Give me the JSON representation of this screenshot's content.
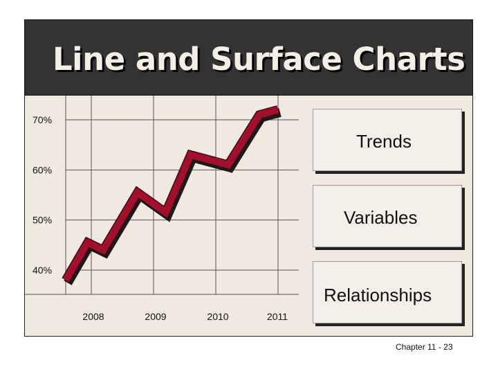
{
  "slide": {
    "title": "Line and Surface Charts",
    "footer": "Chapter 11 - 23"
  },
  "callouts": [
    "Trends",
    "Variables",
    "Relationships"
  ],
  "colors": {
    "line": "#a0102a",
    "line_shadow": "#1a1a1a",
    "background": "#efe9df",
    "title_bar": "#333333"
  },
  "chart_data": {
    "type": "line",
    "title": "",
    "xlabel": "",
    "ylabel": "",
    "y_ticks": [
      "40%",
      "50%",
      "60%",
      "70%"
    ],
    "x_ticks": [
      "2008",
      "2009",
      "2010",
      "2011"
    ],
    "ylim": [
      40,
      70
    ],
    "xlim": [
      2007.6,
      2011.1
    ],
    "grid": true,
    "series": [
      {
        "x": [
          2007.6,
          2007.95,
          2008.2,
          2008.75,
          2009.2,
          2009.6,
          2010.2,
          2010.7,
          2011.0
        ],
        "y": [
          38.0,
          45.5,
          44.0,
          55.5,
          51.5,
          63.0,
          61.0,
          71.0,
          72.0
        ]
      }
    ]
  }
}
